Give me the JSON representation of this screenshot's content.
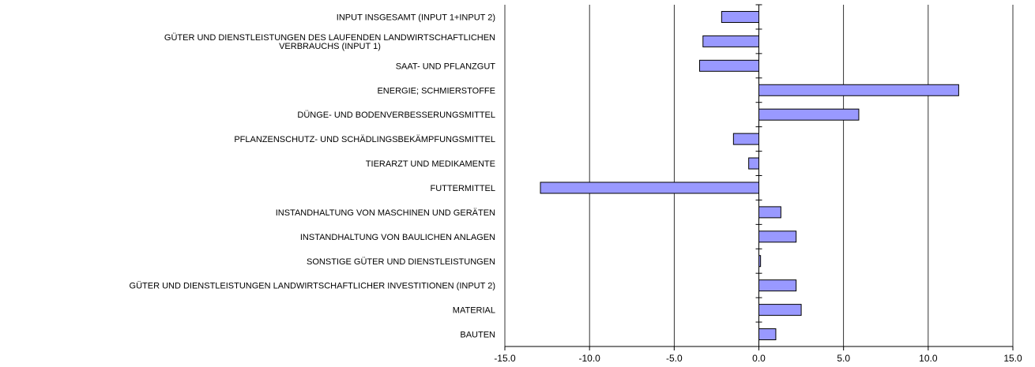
{
  "chart_data": {
    "type": "bar",
    "orientation": "horizontal",
    "categories": [
      "INPUT INSGESAMT (INPUT 1+INPUT 2)",
      "GÜTER UND DIENSTLEISTUNGEN DES LAUFENDEN LANDWIRTSCHAFTLICHEN VERBRAUCHS (INPUT 1)",
      "SAAT- UND PFLANZGUT",
      "ENERGIE; SCHMIERSTOFFE",
      "DÜNGE- UND BODENVERBESSERUNGSMITTEL",
      "PFLANZENSCHUTZ- UND SCHÄDLINGSBEKÄMPFUNGSMITTEL",
      "TIERARZT UND MEDIKAMENTE",
      "FUTTERMITTEL",
      "INSTANDHALTUNG VON MASCHINEN UND GERÄTEN",
      "INSTANDHALTUNG VON BAULICHEN ANLAGEN",
      "SONSTIGE GÜTER UND DIENSTLEISTUNGEN",
      "GÜTER UND DIENSTLEISTUNGEN LANDWIRTSCHAFTLICHER INVESTITIONEN (INPUT 2)",
      "MATERIAL",
      "BAUTEN"
    ],
    "label_lines": [
      [
        "INPUT INSGESAMT (INPUT 1+INPUT 2)"
      ],
      [
        "GÜTER UND DIENSTLEISTUNGEN DES LAUFENDEN LANDWIRTSCHAFTLICHEN",
        "VERBRAUCHS (INPUT 1)"
      ],
      [
        "SAAT- UND PFLANZGUT"
      ],
      [
        "ENERGIE; SCHMIERSTOFFE"
      ],
      [
        "DÜNGE- UND BODENVERBESSERUNGSMITTEL"
      ],
      [
        "PFLANZENSCHUTZ- UND SCHÄDLINGSBEKÄMPFUNGSMITTEL"
      ],
      [
        "TIERARZT UND MEDIKAMENTE"
      ],
      [
        "FUTTERMITTEL"
      ],
      [
        "INSTANDHALTUNG VON MASCHINEN UND GERÄTEN"
      ],
      [
        "INSTANDHALTUNG VON BAULICHEN ANLAGEN"
      ],
      [
        "SONSTIGE GÜTER UND DIENSTLEISTUNGEN"
      ],
      [
        "GÜTER UND DIENSTLEISTUNGEN LANDWIRTSCHAFTLICHER INVESTITIONEN (INPUT 2)"
      ],
      [
        "MATERIAL"
      ],
      [
        "BAUTEN"
      ]
    ],
    "values": [
      -2.2,
      -3.3,
      -3.5,
      11.8,
      5.9,
      -1.5,
      -0.6,
      -12.9,
      1.3,
      2.2,
      0.1,
      2.2,
      2.5,
      1.0
    ],
    "xlim": [
      -15.0,
      15.0
    ],
    "x_ticks": [
      "-15.0",
      "-10.0",
      "-5.0",
      "0.0",
      "5.0",
      "10.0",
      "15.0"
    ],
    "x_tick_values": [
      -15,
      -10,
      -5,
      0,
      5,
      10,
      15
    ],
    "grid": "vertical",
    "bar_color": "#9999FF",
    "bar_edge_color": "#000000",
    "title": "",
    "xlabel": "",
    "ylabel": ""
  }
}
